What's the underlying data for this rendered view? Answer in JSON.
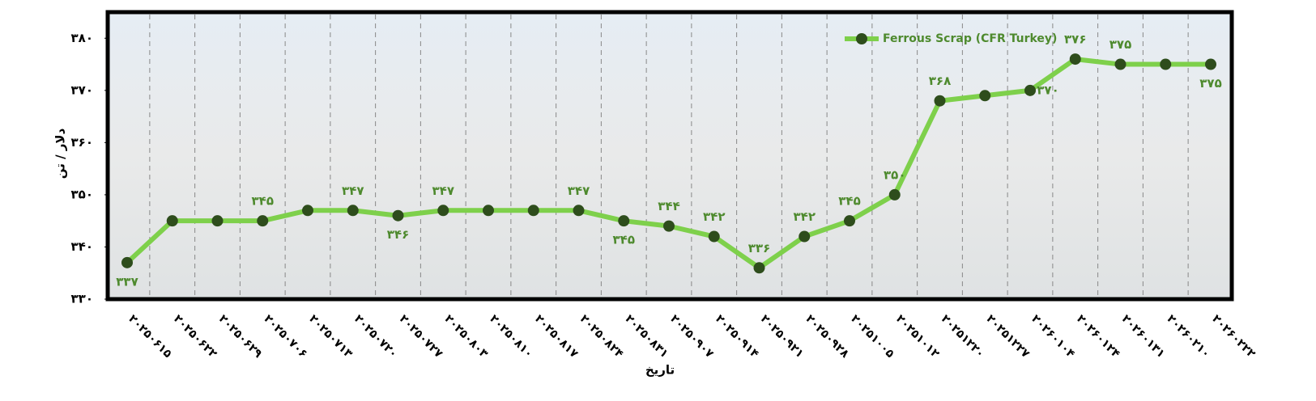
{
  "chart_data": {
    "type": "line",
    "legend": "Ferrous Scrap (CFR Turkey)",
    "y_label": "دلار / تن",
    "x_label": "تاریخ",
    "categories": [
      "۲۰۲۵۰۶۱۵",
      "۲۰۲۵۰۶۲۲",
      "۲۰۲۵۰۶۲۹",
      "۲۰۲۵۰۷۰۶",
      "۲۰۲۵۰۷۱۳",
      "۲۰۲۵۰۷۲۰",
      "۲۰۲۵۰۷۲۷",
      "۲۰۲۵۰۸۰۳",
      "۲۰۲۵۰۸۱۰",
      "۲۰۲۵۰۸۱۷",
      "۲۰۲۵۰۸۲۴",
      "۲۰۲۵۰۸۳۱",
      "۲۰۲۵۰۹۰۷",
      "۲۰۲۵۰۹۱۴",
      "۲۰۲۵۰۹۲۱",
      "۲۰۲۵۰۹۲۸",
      "۲۰۲۵۱۰۰۵",
      "۲۰۲۵۱۰۱۲",
      "۲۰۲۵۱۲۲۰",
      "۲۰۲۵۱۲۲۷",
      "۲۰۲۶۰۱۰۴",
      "۲۰۲۶۰۱۲۴",
      "۲۰۲۶۰۱۳۱",
      "۲۰۲۶۰۲۱۰",
      "۲۰۲۶۰۲۲۲"
    ],
    "series": [
      {
        "name": "Ferrous Scrap (CFR Turkey)",
        "color": "#7ed04b",
        "marker_color": "#2e4d1c",
        "values": [
          337,
          345,
          345,
          345,
          347,
          347,
          346,
          347,
          347,
          347,
          347,
          345,
          344,
          342,
          336,
          342,
          345,
          350,
          368,
          369,
          370,
          376,
          375,
          375,
          375
        ],
        "value_labels": [
          "۳۳۷",
          null,
          null,
          "۳۴۵",
          null,
          "۳۴۷",
          "۳۴۶",
          "۳۴۷",
          null,
          null,
          "۳۴۷",
          "۳۴۵",
          "۳۴۴",
          "۳۴۲",
          "۳۳۶",
          "۳۴۲",
          "۳۴۵",
          "۳۵۰",
          "۳۶۸",
          null,
          "۳۷۰",
          "۳۷۶",
          "۳۷۵",
          null,
          "۳۷۵"
        ]
      }
    ],
    "ylim": [
      330,
      385
    ],
    "yticks": [
      {
        "value": 330,
        "label": "۳۳۰"
      },
      {
        "value": 340,
        "label": "۳۴۰"
      },
      {
        "value": 350,
        "label": "۳۵۰"
      },
      {
        "value": 360,
        "label": "۳۶۰"
      },
      {
        "value": 370,
        "label": "۳۷۰"
      },
      {
        "value": 380,
        "label": "۳۸۰"
      }
    ],
    "label_color": "#4e8a2e"
  }
}
